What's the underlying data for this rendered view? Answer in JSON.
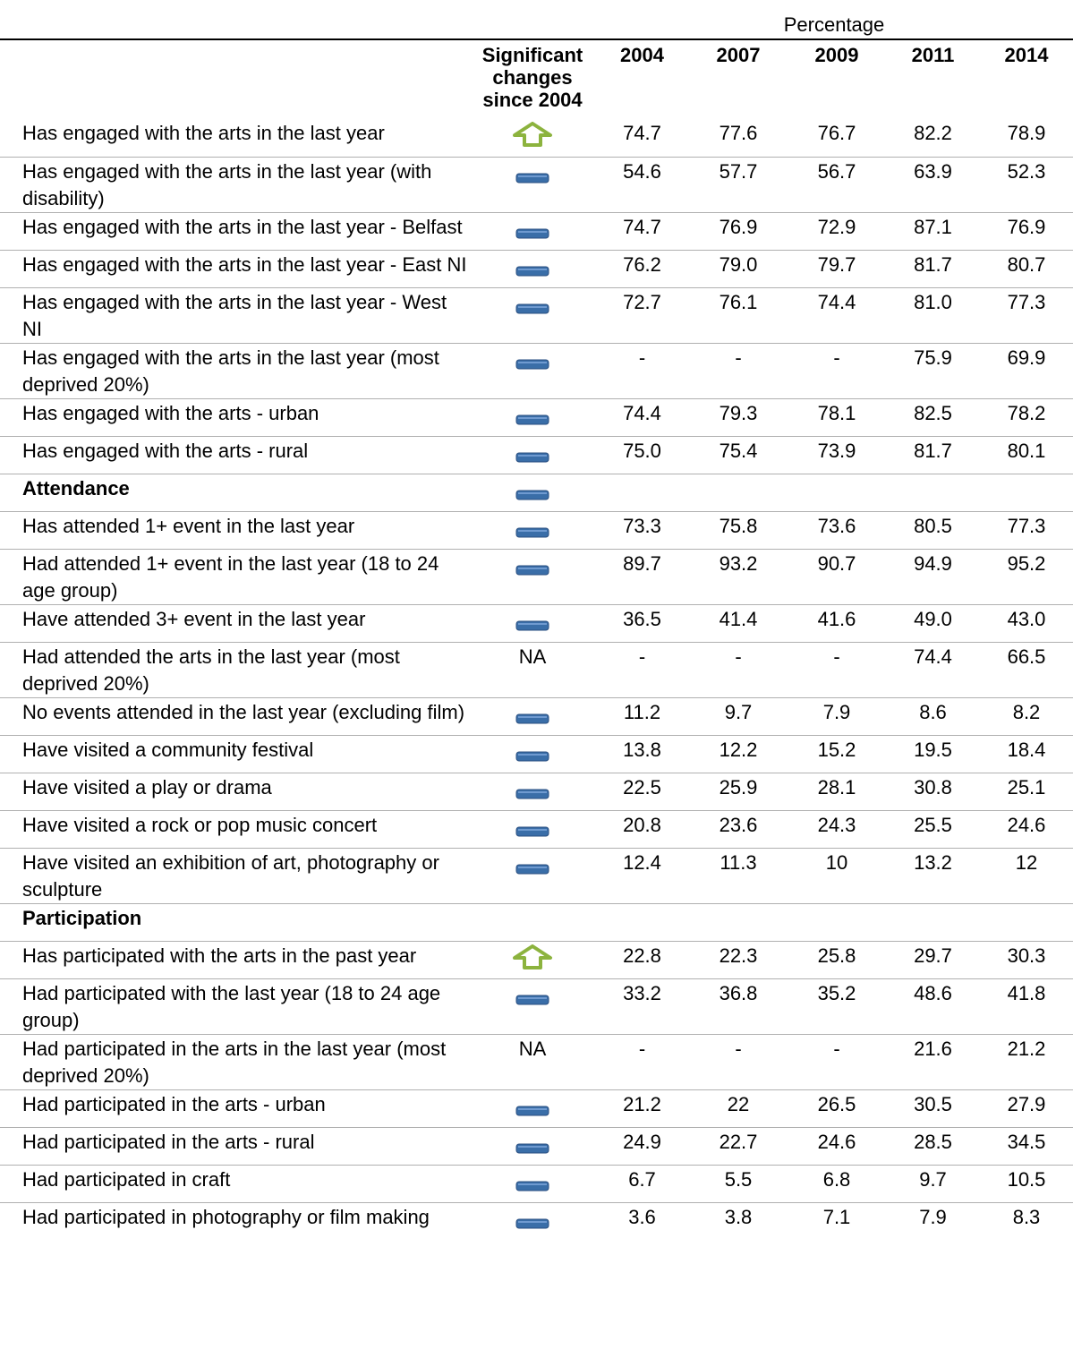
{
  "table": {
    "caption": "Percentage",
    "sig_header": "Significant changes since 2004",
    "years": [
      "2004",
      "2007",
      "2009",
      "2011",
      "2014"
    ],
    "rows": [
      {
        "label": "Has engaged with the arts in the last year",
        "icon": "up",
        "values": [
          "74.7",
          "77.6",
          "76.7",
          "82.2",
          "78.9"
        ]
      },
      {
        "label": "Has engaged with the arts in the last year (with disability)",
        "icon": "flat",
        "values": [
          "54.6",
          "57.7",
          "56.7",
          "63.9",
          "52.3"
        ]
      },
      {
        "label": "Has engaged with the arts in the last year - Belfast",
        "icon": "flat",
        "values": [
          "74.7",
          "76.9",
          "72.9",
          "87.1",
          "76.9"
        ]
      },
      {
        "label": "Has engaged with the arts in the last year - East NI",
        "icon": "flat",
        "values": [
          "76.2",
          "79.0",
          "79.7",
          "81.7",
          "80.7"
        ]
      },
      {
        "label": "Has engaged with the arts in the last year - West NI",
        "icon": "flat",
        "values": [
          "72.7",
          "76.1",
          "74.4",
          "81.0",
          "77.3"
        ]
      },
      {
        "label": "Has engaged with the arts in the last year (most deprived 20%)",
        "icon": "flat",
        "values": [
          "-",
          "-",
          "-",
          "75.9",
          "69.9"
        ]
      },
      {
        "label": "Has engaged with the arts - urban",
        "icon": "flat",
        "values": [
          "74.4",
          "79.3",
          "78.1",
          "82.5",
          "78.2"
        ]
      },
      {
        "label": "Has engaged with the arts - rural",
        "icon": "flat",
        "values": [
          "75.0",
          "75.4",
          "73.9",
          "81.7",
          "80.1"
        ]
      },
      {
        "label": "Attendance",
        "section": true,
        "icon": "flat",
        "values": []
      },
      {
        "label": "Has attended 1+ event in the last year",
        "icon": "flat",
        "values": [
          "73.3",
          "75.8",
          "73.6",
          "80.5",
          "77.3"
        ]
      },
      {
        "label": "Had attended 1+ event in the last year (18 to 24 age group)",
        "icon": "flat",
        "values": [
          "89.7",
          "93.2",
          "90.7",
          "94.9",
          "95.2"
        ]
      },
      {
        "label": "Have attended 3+ event in the last year",
        "icon": "flat",
        "values": [
          "36.5",
          "41.4",
          "41.6",
          "49.0",
          "43.0"
        ]
      },
      {
        "label": "Had attended the arts in the last year (most deprived 20%)",
        "significant": "NA",
        "values": [
          "-",
          "-",
          "-",
          "74.4",
          "66.5"
        ]
      },
      {
        "label": "No events attended in the last year (excluding film)",
        "icon": "flat",
        "values": [
          "11.2",
          "9.7",
          "7.9",
          "8.6",
          "8.2"
        ]
      },
      {
        "label": "Have visited a community festival",
        "icon": "flat",
        "values": [
          "13.8",
          "12.2",
          "15.2",
          "19.5",
          "18.4"
        ]
      },
      {
        "label": "Have visited a play or drama",
        "icon": "flat",
        "values": [
          "22.5",
          "25.9",
          "28.1",
          "30.8",
          "25.1"
        ]
      },
      {
        "label": "Have visited a rock or pop music concert",
        "icon": "flat",
        "values": [
          "20.8",
          "23.6",
          "24.3",
          "25.5",
          "24.6"
        ]
      },
      {
        "label": "Have visited an exhibition of art, photography or sculpture",
        "icon": "flat",
        "values": [
          "12.4",
          "11.3",
          "10",
          "13.2",
          "12"
        ]
      },
      {
        "label": "Participation",
        "section": true,
        "values": []
      },
      {
        "label": "Has participated with the arts in the past year",
        "icon": "up",
        "values": [
          "22.8",
          "22.3",
          "25.8",
          "29.7",
          "30.3"
        ]
      },
      {
        "label": "Had participated with the last year (18 to 24 age group)",
        "icon": "flat",
        "values": [
          "33.2",
          "36.8",
          "35.2",
          "48.6",
          "41.8"
        ]
      },
      {
        "label": "Had participated in the arts in the last year (most deprived 20%)",
        "significant": "NA",
        "values": [
          "-",
          "-",
          "-",
          "21.6",
          "21.2"
        ]
      },
      {
        "label": "Had participated in the arts - urban",
        "icon": "flat",
        "values": [
          "21.2",
          "22",
          "26.5",
          "30.5",
          "27.9"
        ]
      },
      {
        "label": "Had participated in the arts - rural",
        "icon": "flat",
        "values": [
          "24.9",
          "22.7",
          "24.6",
          "28.5",
          "34.5"
        ]
      },
      {
        "label": "Had participated in craft",
        "icon": "flat",
        "values": [
          "6.7",
          "5.5",
          "6.8",
          "9.7",
          "10.5"
        ]
      },
      {
        "label": "Had participated in photography or film making",
        "icon": "flat",
        "values": [
          "3.6",
          "3.8",
          "7.1",
          "7.9",
          "8.3"
        ]
      }
    ]
  }
}
